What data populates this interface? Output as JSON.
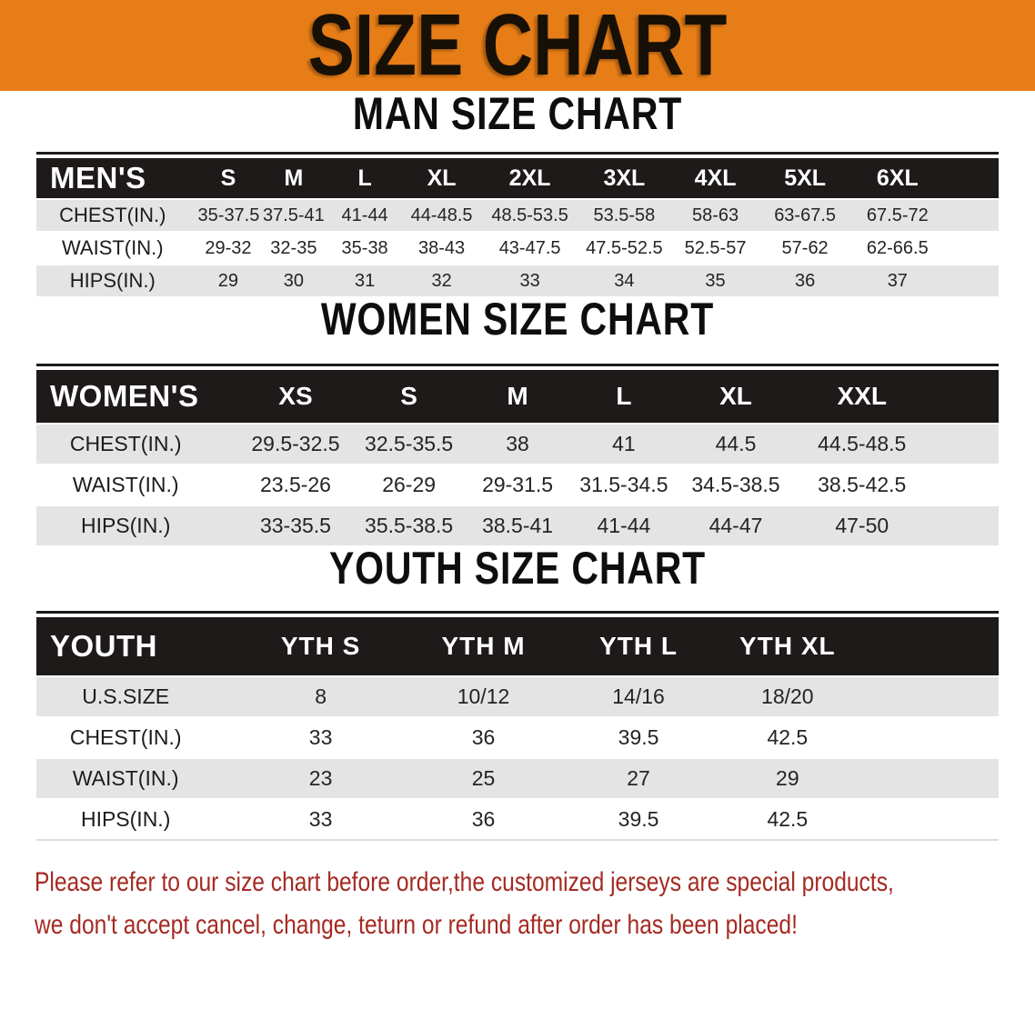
{
  "banner": {
    "title": "SIZE CHART"
  },
  "sections": {
    "men": {
      "heading": "MAN SIZE CHART",
      "table": {
        "header_label": "MEN'S",
        "sizes": [
          "S",
          "M",
          "L",
          "XL",
          "2XL",
          "3XL",
          "4XL",
          "5XL",
          "6XL"
        ],
        "rows": [
          {
            "label": "CHEST(IN.)",
            "values": [
              "35-37.5",
              "37.5-41",
              "41-44",
              "44-48.5",
              "48.5-53.5",
              "53.5-58",
              "58-63",
              "63-67.5",
              "67.5-72"
            ]
          },
          {
            "label": "WAIST(IN.)",
            "values": [
              "29-32",
              "32-35",
              "35-38",
              "38-43",
              "43-47.5",
              "47.5-52.5",
              "52.5-57",
              "57-62",
              "62-66.5"
            ]
          },
          {
            "label": "HIPS(IN.)",
            "values": [
              "29",
              "30",
              "31",
              "32",
              "33",
              "34",
              "35",
              "36",
              "37"
            ]
          }
        ]
      }
    },
    "women": {
      "heading": "WOMEN SIZE CHART",
      "table": {
        "header_label": "WOMEN'S",
        "sizes": [
          "XS",
          "S",
          "M",
          "L",
          "XL",
          "XXL"
        ],
        "rows": [
          {
            "label": "CHEST(IN.)",
            "values": [
              "29.5-32.5",
              "32.5-35.5",
              "38",
              "41",
              "44.5",
              "44.5-48.5"
            ]
          },
          {
            "label": "WAIST(IN.)",
            "values": [
              "23.5-26",
              "26-29",
              "29-31.5",
              "31.5-34.5",
              "34.5-38.5",
              "38.5-42.5"
            ]
          },
          {
            "label": "HIPS(IN.)",
            "values": [
              "33-35.5",
              "35.5-38.5",
              "38.5-41",
              "41-44",
              "44-47",
              "47-50"
            ]
          }
        ]
      }
    },
    "youth": {
      "heading": "YOUTH SIZE CHART",
      "table": {
        "header_label": "YOUTH",
        "sizes": [
          "YTH S",
          "YTH M",
          "YTH L",
          "YTH XL"
        ],
        "rows": [
          {
            "label": "U.S.SIZE",
            "values": [
              "8",
              "10/12",
              "14/16",
              "18/20"
            ]
          },
          {
            "label": "CHEST(IN.)",
            "values": [
              "33",
              "36",
              "39.5",
              "42.5"
            ]
          },
          {
            "label": "WAIST(IN.)",
            "values": [
              "23",
              "25",
              "27",
              "29"
            ]
          },
          {
            "label": "HIPS(IN.)",
            "values": [
              "33",
              "36",
              "39.5",
              "42.5"
            ]
          }
        ]
      }
    }
  },
  "footer_note": {
    "lines": [
      "Please refer to our size chart before order,the customized jerseys are special products,",
      "we don't accept cancel, change, teturn or refund after order has been placed!"
    ]
  },
  "colors": {
    "banner_bg": "#E67D17",
    "banner_text": "#171007",
    "table_header_bg": "#1D1A19",
    "table_header_text": "#FFFFFF",
    "row_stripe": "#E4E4E4",
    "row_white": "#FFFFFF",
    "body_text": "#242424",
    "note_text": "#A52A22"
  }
}
